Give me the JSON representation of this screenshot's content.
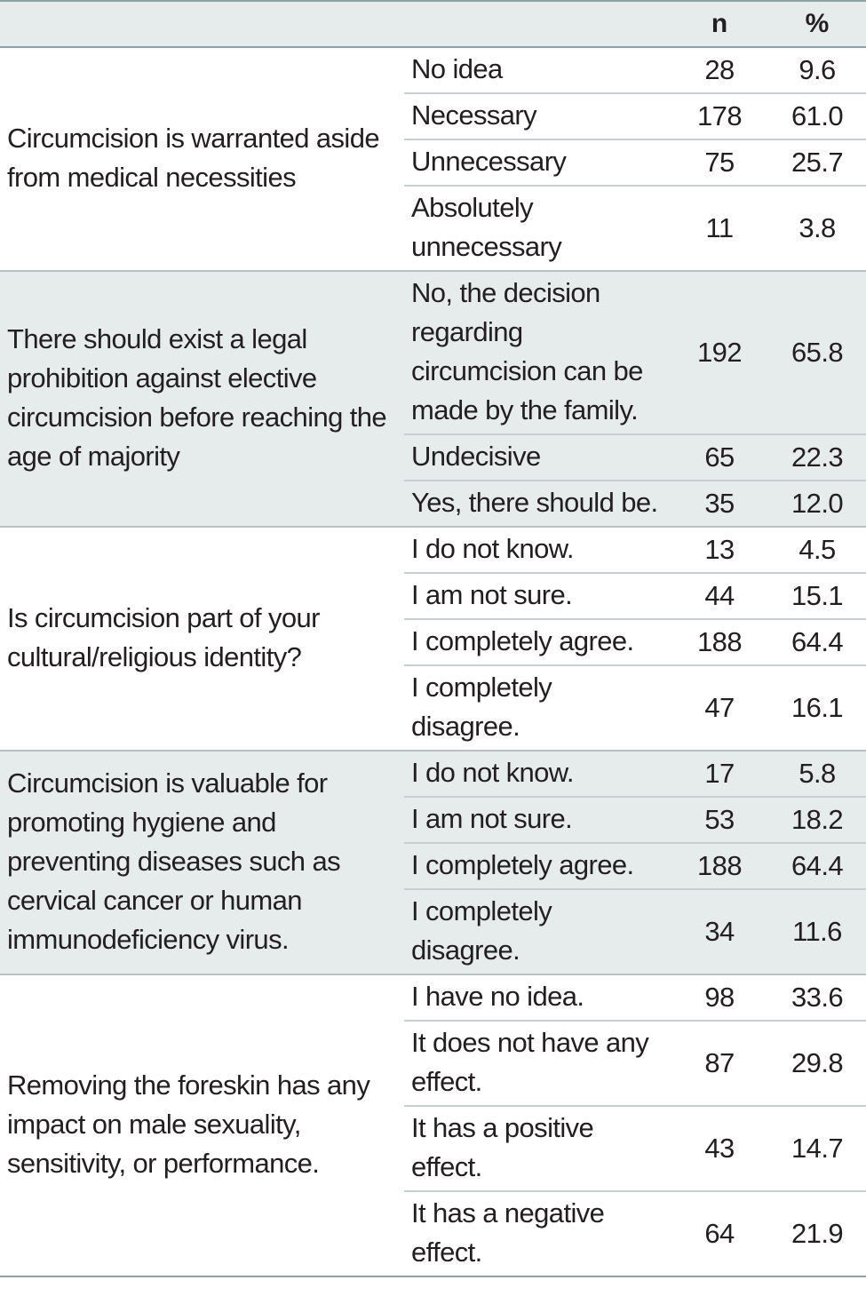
{
  "header": {
    "col_question": "",
    "col_response": "",
    "col_n": "n",
    "col_pct": "%"
  },
  "groups": [
    {
      "question": "Circumcision is warranted aside from medical necessities",
      "shaded": false,
      "rows": [
        {
          "response": "No idea",
          "n": "28",
          "pct": "9.6"
        },
        {
          "response": "Necessary",
          "n": "178",
          "pct": "61.0"
        },
        {
          "response": "Unnecessary",
          "n": "75",
          "pct": "25.7"
        },
        {
          "response": "Absolutely unnecessary",
          "n": "11",
          "pct": "3.8"
        }
      ]
    },
    {
      "question": "There should exist a legal prohibition against elective circumcision before reaching the age of majority",
      "shaded": true,
      "rows": [
        {
          "response": "No, the decision regarding circumcision can be made by the family.",
          "n": "192",
          "pct": "65.8"
        },
        {
          "response": "Undecisive",
          "n": "65",
          "pct": "22.3"
        },
        {
          "response": "Yes, there should be.",
          "n": "35",
          "pct": "12.0"
        }
      ]
    },
    {
      "question": "Is circumcision part of your cultural/religious identity?",
      "shaded": false,
      "rows": [
        {
          "response": "I do not know.",
          "n": "13",
          "pct": "4.5"
        },
        {
          "response": "I am not sure.",
          "n": "44",
          "pct": "15.1"
        },
        {
          "response": "I completely agree.",
          "n": "188",
          "pct": "64.4"
        },
        {
          "response": "I completely disagree.",
          "n": "47",
          "pct": "16.1"
        }
      ]
    },
    {
      "question": "Circumcision is valuable for promoting hygiene and preventing diseases such as cervical cancer or human immunodeficiency virus.",
      "shaded": true,
      "rows": [
        {
          "response": "I do not know.",
          "n": "17",
          "pct": "5.8"
        },
        {
          "response": "I am not sure.",
          "n": "53",
          "pct": "18.2"
        },
        {
          "response": "I completely agree.",
          "n": "188",
          "pct": "64.4"
        },
        {
          "response": "I completely disagree.",
          "n": "34",
          "pct": "11.6"
        }
      ]
    },
    {
      "question": "Removing the foreskin has any impact on male sexuality, sensitivity, or performance.",
      "shaded": false,
      "rows": [
        {
          "response": "I have no idea.",
          "n": "98",
          "pct": "33.6"
        },
        {
          "response": "It does not have any effect.",
          "n": "87",
          "pct": "29.8"
        },
        {
          "response": "It has a positive effect.",
          "n": "43",
          "pct": "14.7"
        },
        {
          "response": "It has a negative effect.",
          "n": "64",
          "pct": "21.9"
        }
      ]
    }
  ],
  "colors": {
    "shade": "#e6ebeb",
    "rule": "#8ea1a6",
    "text": "#231f20"
  }
}
